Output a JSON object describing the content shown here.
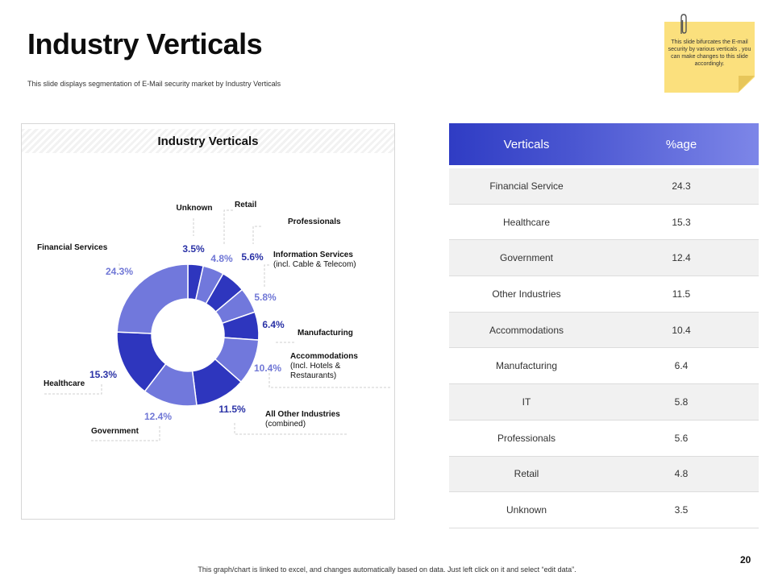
{
  "slide": {
    "title": "Industry Verticals",
    "subtitle": "This slide displays segmentation of E-Mail security market by Industry Verticals",
    "sticky_note": "This slide bifurcates the E-mail security by various verticals , you can make changes to this slide accordingly.",
    "footer": "This graph/chart is linked to excel, and changes automatically based on data. Just left click on it and select “edit data”.",
    "page_number": "20"
  },
  "chart_data": {
    "type": "pie",
    "title": "Industry Verticals",
    "donut": true,
    "colors": {
      "dark": "#2e36be",
      "light": "#7178dc",
      "label_dark": "#2a32a6",
      "label_light": "#7077d6"
    },
    "series": [
      {
        "values": [
          3.5,
          4.8,
          5.6,
          5.8,
          6.4,
          10.4,
          11.5,
          12.4,
          15.3,
          24.3
        ],
        "value_labels": [
          "3.5%",
          "4.8%",
          "5.6%",
          "5.8%",
          "6.4%",
          "10.4%",
          "11.5%",
          "12.4%",
          "15.3%",
          "24.3%"
        ],
        "category_labels": [
          [
            "Unknown"
          ],
          [
            "Retail"
          ],
          [
            "Professionals"
          ],
          [
            "Information Services",
            "(incl. Cable & Telecom)"
          ],
          [
            "Manufacturing"
          ],
          [
            "Accommodations",
            "(Incl. Hotels &",
            "Restaurants)"
          ],
          [
            "All Other Industries",
            "(combined)"
          ],
          [
            "Government"
          ],
          [
            "Healthcare"
          ],
          [
            "Financial Services"
          ]
        ]
      }
    ]
  },
  "table": {
    "headers": [
      "Verticals",
      "%age"
    ],
    "rows": [
      [
        "Financial Service",
        "24.3"
      ],
      [
        "Healthcare",
        "15.3"
      ],
      [
        "Government",
        "12.4"
      ],
      [
        "Other Industries",
        "11.5"
      ],
      [
        "Accommodations",
        "10.4"
      ],
      [
        "Manufacturing",
        "6.4"
      ],
      [
        "IT",
        "5.8"
      ],
      [
        "Professionals",
        "5.6"
      ],
      [
        "Retail",
        "4.8"
      ],
      [
        "Unknown",
        "3.5"
      ]
    ]
  }
}
